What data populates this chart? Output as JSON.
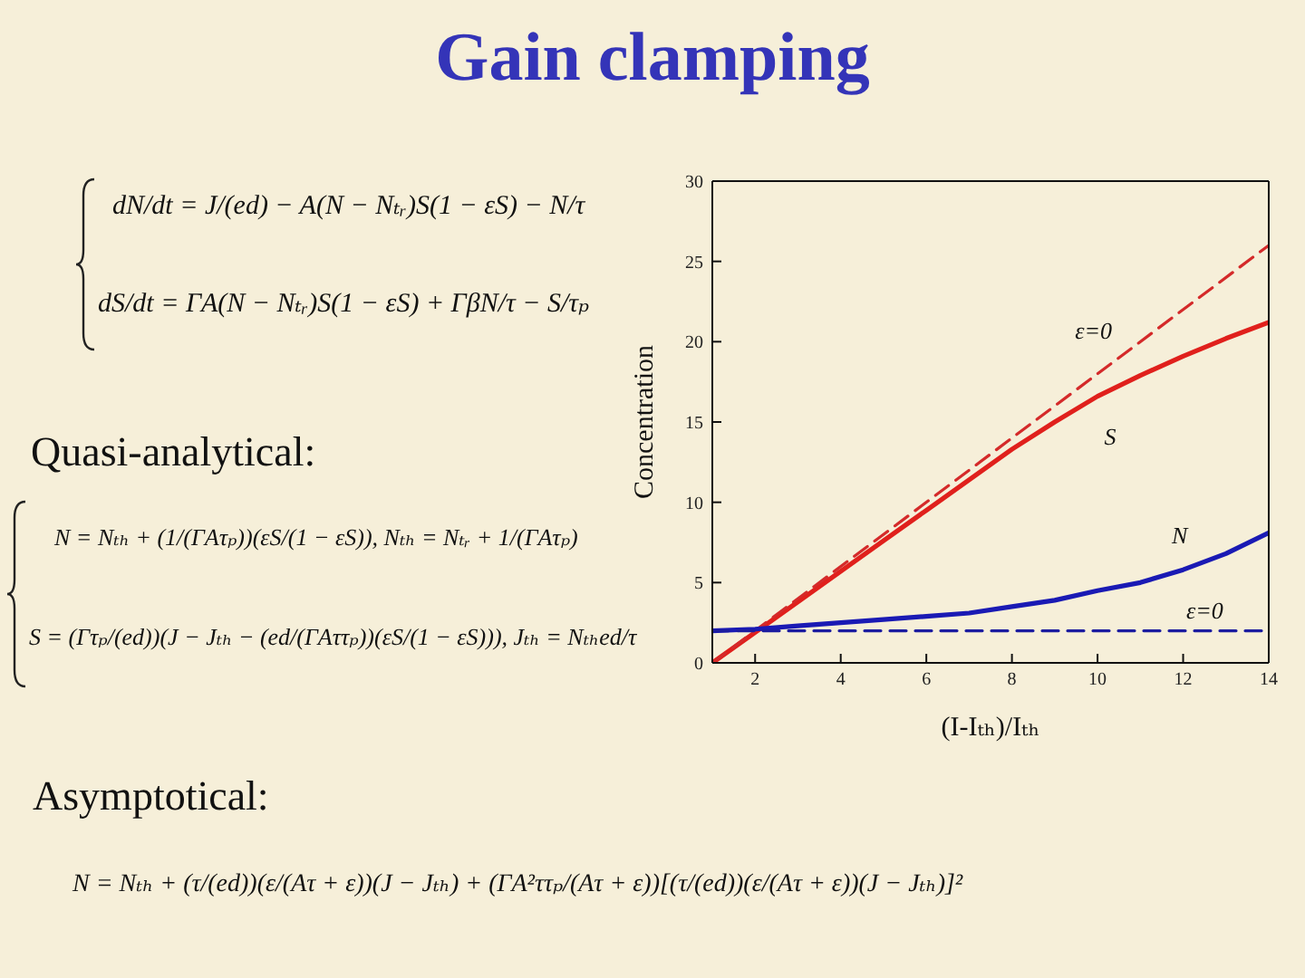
{
  "chart_data": {
    "type": "line",
    "title": "Gain clamping",
    "xlabel": "(I-Iₜₕ)/Iₜₕ",
    "ylabel": "Concentration",
    "xlim": [
      1,
      14
    ],
    "xticks": [
      2,
      4,
      6,
      8,
      10,
      12,
      14
    ],
    "ylim": [
      0,
      30
    ],
    "yticks": [
      0,
      5,
      10,
      15,
      20,
      25,
      30
    ],
    "line_style": "solid",
    "series": [
      {
        "name": "S",
        "color": "#e0201c",
        "x": [
          1,
          2,
          3,
          4,
          5,
          6,
          7,
          8,
          9,
          10,
          11,
          12,
          13,
          14
        ],
        "values": [
          0,
          1.9,
          3.8,
          5.7,
          7.6,
          9.5,
          11.4,
          13.3,
          15.0,
          16.6,
          17.9,
          19.1,
          20.2,
          21.2
        ]
      },
      {
        "name": "ε=0",
        "color": "#d42a2a",
        "line_style": "dashed",
        "x": [
          1,
          14
        ],
        "values": [
          0,
          26
        ]
      },
      {
        "name": "N",
        "color": "#1a1ab4",
        "x": [
          1,
          2,
          3,
          4,
          5,
          6,
          7,
          8,
          9,
          10,
          11,
          12,
          13,
          14
        ],
        "values": [
          2.0,
          2.1,
          2.3,
          2.5,
          2.7,
          2.9,
          3.1,
          3.5,
          3.9,
          4.5,
          5.0,
          5.8,
          6.8,
          8.1
        ]
      },
      {
        "name": "ε=0",
        "color": "#1c1ca0",
        "line_style": "dashed",
        "x": [
          1,
          14
        ],
        "values": [
          2.0,
          2.0
        ]
      }
    ],
    "annotations": [
      "dN/dt = J/(ed) − A(N − Nₜᵣ)S(1 − εS) − N/τ",
      "dS/dt = ΓA(N − Nₜᵣ)S(1 − εS) + ΓβN/τ − S/τₚ",
      "Quasi-analytical:",
      "N = Nₜₕ + (1/(ΓAτₚ))(εS/(1 − εS)),  Nₜₕ = Nₜᵣ + 1/(ΓAτₚ)",
      "S = (Γτₚ/(ed))(J − Jₜₕ − (ed/(ΓAττₚ))(εS/(1 − εS))),  Jₜₕ = Nₜₕed/τ",
      "Asymptotical:",
      "N = Nₜₕ + (τ/(ed))(ε/(Aτ + ε))(J − Jₜₕ) + (ΓA²ττₚ/(Aτ + ε))[(τ/(ed))(ε/(Aτ + ε))(J − Jₜₕ)]²"
    ]
  }
}
